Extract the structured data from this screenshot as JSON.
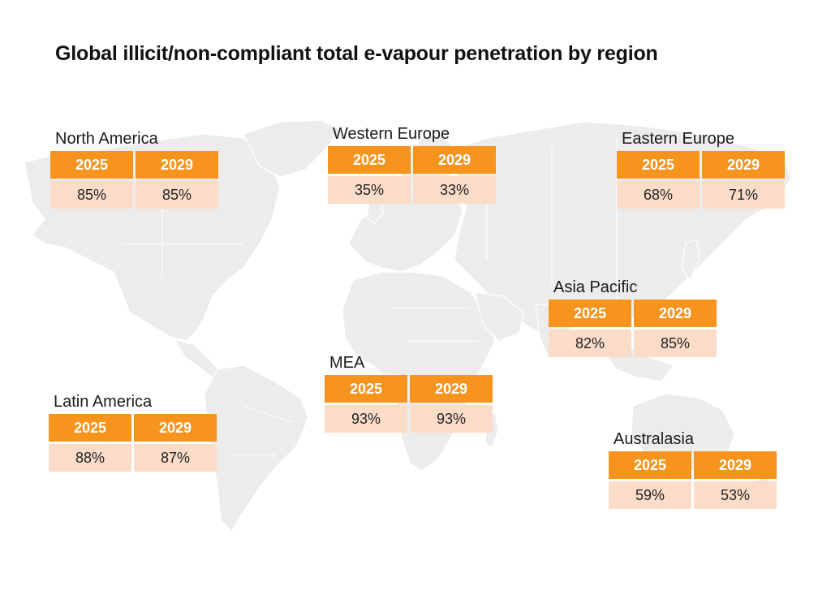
{
  "title": "Global illicit/non-compliant total e-vapour penetration by region",
  "colors": {
    "header": "#F7941D",
    "value": "#FBDCC8",
    "land": "#ececec"
  },
  "chart_data": {
    "type": "table",
    "columns": [
      "2025",
      "2029"
    ],
    "regions": [
      {
        "name": "North America",
        "values": [
          "85%",
          "85%"
        ]
      },
      {
        "name": "Western Europe",
        "values": [
          "35%",
          "33%"
        ]
      },
      {
        "name": "Eastern Europe",
        "values": [
          "68%",
          "71%"
        ]
      },
      {
        "name": "Asia Pacific",
        "values": [
          "82%",
          "85%"
        ]
      },
      {
        "name": "MEA",
        "values": [
          "93%",
          "93%"
        ]
      },
      {
        "name": "Latin America",
        "values": [
          "88%",
          "87%"
        ]
      },
      {
        "name": "Australasia",
        "values": [
          "59%",
          "53%"
        ]
      }
    ]
  }
}
